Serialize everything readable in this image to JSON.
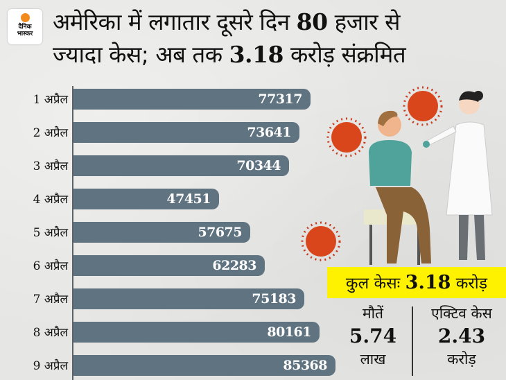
{
  "logo": {
    "line1": "दैनिक",
    "line2": "भास्कर",
    "dot_color": "#f28a1e"
  },
  "headline": {
    "line1_pre": "अमेरिका में लगातार दूसरे दिन ",
    "line1_num": "80",
    "line1_post": " हजार से",
    "line2_pre": "ज्यादा केस; अब तक ",
    "line2_num": "3.18",
    "line2_post": " करोड़ संक्रमित"
  },
  "chart_data": {
    "type": "bar",
    "orientation": "horizontal",
    "title": "अमेरिका में लगातार दूसरे दिन 80 हजार से ज्यादा केस; अब तक 3.18 करोड़ संक्रमित",
    "categories": [
      "1 अप्रैल",
      "2 अप्रैल",
      "3 अप्रैल",
      "4 अप्रैल",
      "5 अप्रैल",
      "6 अप्रैल",
      "7 अप्रैल",
      "8 अप्रैल",
      "9 अप्रैल"
    ],
    "values": [
      77317,
      73641,
      70344,
      47451,
      57675,
      62283,
      75183,
      80161,
      85368
    ],
    "xlabel": "",
    "ylabel": "",
    "grid": false,
    "bar_color": "#5f7380",
    "data_labels": true
  },
  "summary": {
    "total_label": "कुल केसः",
    "total_value": "3.18",
    "total_unit": "करोड़",
    "deaths_label": "मौतें",
    "deaths_value": "5.74",
    "deaths_unit": "लाख",
    "active_label": "एक्टिव केस",
    "active_value": "2.43",
    "active_unit": "करोड़",
    "highlight_color": "#fff200"
  },
  "illustration": {
    "description": "doctor-swab-test-with-virus-icons"
  }
}
